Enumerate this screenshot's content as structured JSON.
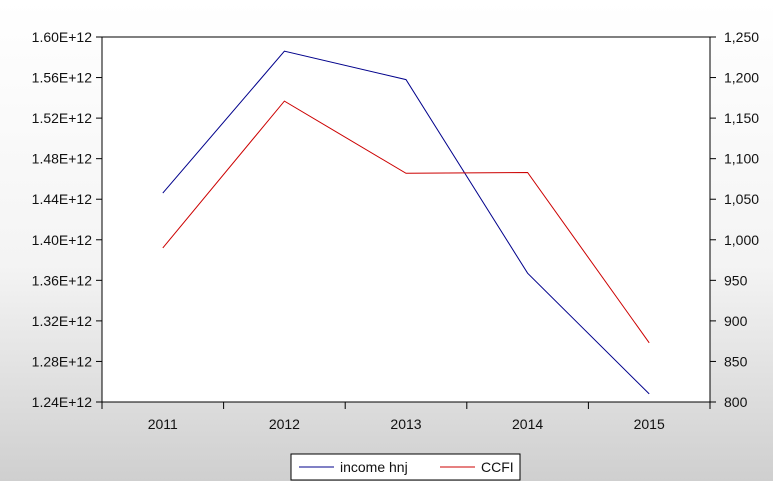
{
  "chart_data": {
    "type": "line",
    "categories": [
      "2011",
      "2012",
      "2013",
      "2014",
      "2015"
    ],
    "series": [
      {
        "name": "income hnj",
        "axis": "left",
        "color": "#00008b",
        "values": [
          1446000000000.0,
          1586000000000.0,
          1558000000000.0,
          1367000000000.0,
          1248000000000.0
        ]
      },
      {
        "name": "CCFI",
        "axis": "right",
        "color": "#cc0000",
        "values": [
          990,
          1171,
          1082,
          1083,
          873
        ]
      }
    ],
    "left_axis": {
      "ylim": [
        1240000000000.0,
        1600000000000.0
      ],
      "tick_values": [
        1240000000000.0,
        1280000000000.0,
        1320000000000.0,
        1360000000000.0,
        1400000000000.0,
        1440000000000.0,
        1480000000000.0,
        1520000000000.0,
        1560000000000.0,
        1600000000000.0
      ],
      "tick_labels": [
        "1.24E+12",
        "1.28E+12",
        "1.32E+12",
        "1.36E+12",
        "1.40E+12",
        "1.44E+12",
        "1.48E+12",
        "1.52E+12",
        "1.56E+12",
        "1.60E+12"
      ]
    },
    "right_axis": {
      "ylim": [
        800,
        1250
      ],
      "tick_values": [
        800,
        850,
        900,
        950,
        1000,
        1050,
        1100,
        1150,
        1200,
        1250
      ],
      "tick_labels": [
        "800",
        "850",
        "900",
        "950",
        "1,000",
        "1,050",
        "1,100",
        "1,150",
        "1,200",
        "1,250"
      ]
    },
    "grid": false,
    "legend": {
      "position": "bottom-center"
    },
    "title": "",
    "xlabel": "",
    "ylabel": ""
  }
}
